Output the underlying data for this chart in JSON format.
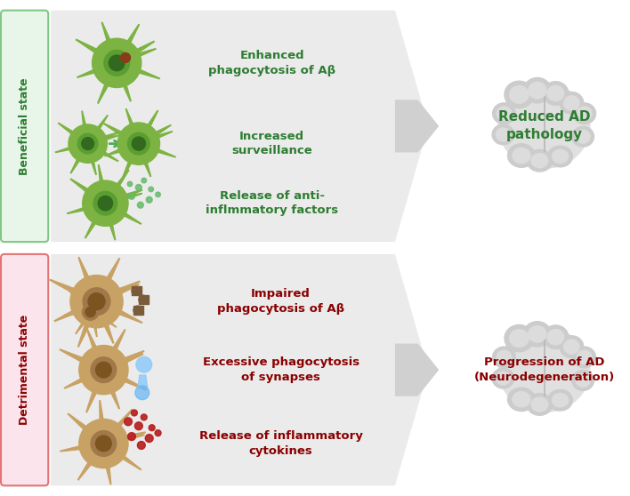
{
  "bg_color": "#ffffff",
  "panel_color": "#ebebeb",
  "beneficial_label_bg": "#e8f5e9",
  "beneficial_label_border": "#81c784",
  "beneficial_label_text": "#2e7d32",
  "beneficial_label": "Beneficial state",
  "detrimental_label_bg": "#fce4ec",
  "detrimental_label_border": "#e57373",
  "detrimental_label_text": "#8b0000",
  "detrimental_label": "Detrimental state",
  "beneficial_texts": [
    "Enhanced\nphagocytosis of Aβ",
    "Increased\nsurveillance",
    "Release of anti-\ninflmmatory factors"
  ],
  "detrimental_texts": [
    "Impaired\nphagocytosis of Aβ",
    "Excessive phagocytosis\nof synapses",
    "Release of inflammatory\ncytokines"
  ],
  "beneficial_text_color": "#2e7d32",
  "detrimental_text_color": "#8b0000",
  "beneficial_outcome": "Reduced AD\npathology",
  "detrimental_outcome": "Progression of AD\n(Neurodegeneration)",
  "outcome_beneficial_color": "#2e7d32",
  "outcome_detrimental_color": "#8b0000",
  "microglia_green": "#7cb342",
  "microglia_green_mid": "#5a9e32",
  "microglia_green_dark": "#33691e",
  "microglia_tan": "#c8a264",
  "microglia_tan_mid": "#a0784a",
  "microglia_tan_dark": "#7a5520",
  "arrow_green": "#4caf50",
  "synapse_color": "#90caf9",
  "synapse_dark": "#64b5f6",
  "amyloid_color": "#7a5c3a",
  "release_green": "#66bb6a",
  "cytokine_color": "#b71c1c",
  "red_spot": "#8b3a1a"
}
